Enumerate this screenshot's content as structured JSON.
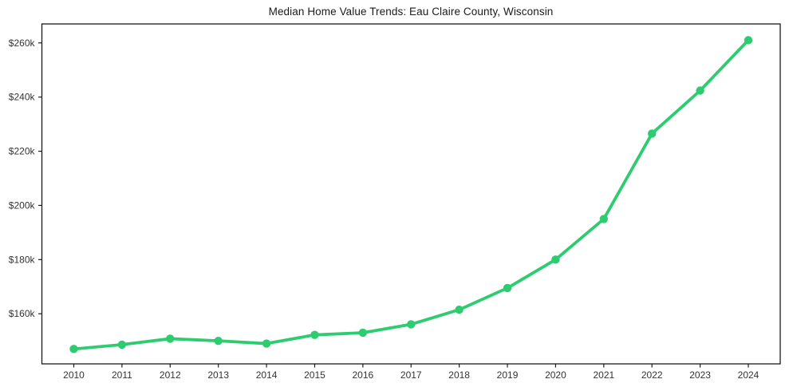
{
  "page": {
    "title": "Median Home Value Trends: Eau Claire County, Wisconsin"
  },
  "chart_data": {
    "type": "line",
    "title": "Median Home Value Trends: Eau Claire County, Wisconsin",
    "xlabel": "",
    "ylabel": "",
    "x": [
      2010,
      2011,
      2012,
      2013,
      2014,
      2015,
      2016,
      2017,
      2018,
      2019,
      2020,
      2021,
      2022,
      2023,
      2024
    ],
    "x_tick_labels": [
      "2010",
      "2011",
      "2012",
      "2013",
      "2014",
      "2015",
      "2016",
      "2017",
      "2018",
      "2019",
      "2020",
      "2021",
      "2022",
      "2023",
      "2024"
    ],
    "series": [
      {
        "name": "Median Home Value",
        "values": [
          147000,
          148600,
          150800,
          150000,
          149000,
          152200,
          153000,
          156100,
          161500,
          169500,
          180000,
          195000,
          226500,
          242400,
          261000
        ]
      }
    ],
    "y_ticks": [
      160000,
      180000,
      200000,
      220000,
      240000,
      260000
    ],
    "y_tick_labels": [
      "$160k",
      "$180k",
      "$200k",
      "$220k",
      "$240k",
      "$260k"
    ],
    "ylim": [
      141500,
      267000
    ],
    "grid": false,
    "legend": "none",
    "line_color": "#2ecc71",
    "marker": "circle",
    "frame_color": "#1a1a1a",
    "tick_color": "#1a1a1a"
  }
}
